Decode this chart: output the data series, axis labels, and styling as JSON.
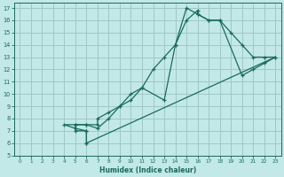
{
  "xlabel": "Humidex (Indice chaleur)",
  "bg_color": "#c2e8e8",
  "grid_color": "#a0c8c8",
  "line_color": "#1a6b5a",
  "xlim": [
    -0.5,
    23.5
  ],
  "ylim": [
    5,
    17.4
  ],
  "xticks": [
    0,
    1,
    2,
    3,
    4,
    5,
    6,
    7,
    8,
    9,
    10,
    11,
    12,
    13,
    14,
    15,
    16,
    17,
    18,
    19,
    20,
    21,
    22,
    23
  ],
  "yticks": [
    5,
    6,
    7,
    8,
    9,
    10,
    11,
    12,
    13,
    14,
    15,
    16,
    17
  ],
  "line1_x": [
    6,
    6,
    5,
    5,
    6,
    7,
    7,
    8,
    9,
    10,
    11,
    12,
    13,
    14,
    15,
    16,
    16,
    17,
    18,
    19,
    20,
    21,
    22,
    23
  ],
  "line1_y": [
    6,
    7,
    7,
    7.5,
    7.5,
    7.5,
    8,
    8.5,
    9,
    9.5,
    10.5,
    12,
    13,
    14,
    16,
    16.8,
    16.5,
    16,
    16,
    15,
    14,
    13,
    13,
    13
  ],
  "line2_x": [
    6,
    6,
    5,
    4,
    5,
    6,
    7,
    8,
    9,
    10,
    11,
    13,
    14,
    15,
    16,
    17,
    18,
    20,
    21,
    22,
    23
  ],
  "line2_y": [
    6,
    7,
    7.2,
    7.5,
    7.5,
    7.5,
    7.2,
    8,
    9,
    10,
    10.5,
    9.5,
    14,
    17,
    16.5,
    16,
    16,
    11.5,
    12,
    12.5,
    13
  ],
  "line3_x": [
    6,
    23
  ],
  "line3_y": [
    6,
    13
  ]
}
